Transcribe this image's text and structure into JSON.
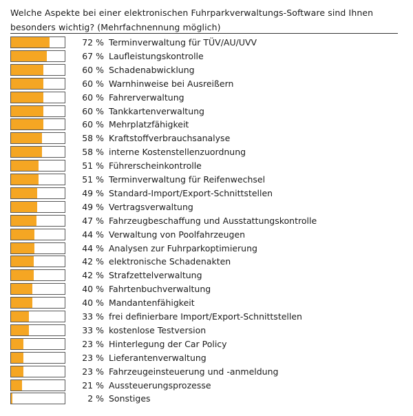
{
  "chart_data": {
    "type": "bar",
    "title": "Welche Aspekte bei einer elektronischen Fuhrparkverwaltungs-Software sind Ihnen besonders wichtig? (Mehrfachnennung möglich)",
    "xlim": [
      0,
      100
    ],
    "bar_color": "#f5a623",
    "categories": [
      "Terminverwaltung für TÜV/AU/UVV",
      "Laufleistungskontrolle",
      "Schadenabwicklung",
      "Warnhinweise bei Ausreißern",
      "Fahrerverwaltung",
      "Tankkartenverwaltung",
      "Mehrplatzfähigkeit",
      "Kraftstoffverbrauchsanalyse",
      "interne Kostenstellenzuordnung",
      "Führerscheinkontrolle",
      "Terminverwaltung für Reifenwechsel",
      "Standard-Import/Export-Schnittstellen",
      "Vertragsverwaltung",
      "Fahrzeugbeschaffung und Ausstattungskontrolle",
      "Verwaltung von Poolfahrzeugen",
      "Analysen zur Fuhrparkoptimierung",
      "elektronische Schadenakten",
      "Strafzettelverwaltung",
      "Fahrtenbuchverwaltung",
      "Mandantenfähigkeit",
      "frei definierbare Import/Export-Schnittstellen",
      "kostenlose Testversion",
      "Hinterlegung der Car Policy",
      "Lieferantenverwaltung",
      "Fahrzeugeinsteuerung und -anmeldung",
      "Aussteuerungsprozesse",
      "Sonstiges"
    ],
    "values": [
      72,
      67,
      60,
      60,
      60,
      60,
      60,
      58,
      58,
      51,
      51,
      49,
      49,
      47,
      44,
      44,
      42,
      42,
      40,
      40,
      33,
      33,
      23,
      23,
      23,
      21,
      2
    ],
    "value_labels": [
      "72 %",
      "67 %",
      "60 %",
      "60 %",
      "60 %",
      "60 %",
      "60 %",
      "58 %",
      "58 %",
      "51 %",
      "51 %",
      "49 %",
      "49 %",
      "47 %",
      "44 %",
      "44 %",
      "42 %",
      "42 %",
      "40 %",
      "40 %",
      "33 %",
      "33 %",
      "23 %",
      "23 %",
      "23 %",
      "21 %",
      "2 %"
    ]
  }
}
